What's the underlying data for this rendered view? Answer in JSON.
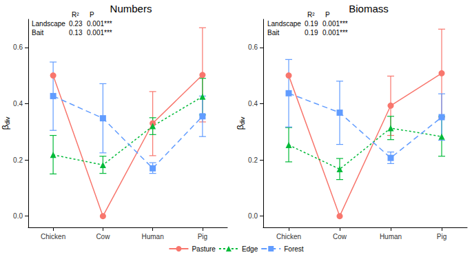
{
  "chart_data": [
    {
      "type": "line",
      "title": "Numbers",
      "categories": [
        "Chicken",
        "Cow",
        "Human",
        "Pig"
      ],
      "y_label": {
        "main": "β",
        "sub": "div"
      },
      "ylim": [
        -0.04,
        0.7
      ],
      "yticks": [
        {
          "value": 0,
          "label": "0.0"
        },
        0.2,
        0.4,
        0.6
      ],
      "grid": false,
      "legend": "bottom",
      "stats": {
        "header": [
          "R²",
          "P"
        ],
        "rows": [
          [
            "Landscape",
            "0.23",
            "0.001***"
          ],
          [
            "Bait",
            "0.13",
            "0.001***"
          ]
        ]
      },
      "series": [
        {
          "name": "Pasture",
          "color": "#F8766D",
          "marker": "circle",
          "line_style": "solid",
          "values": [
            0.5,
            0.0,
            0.33,
            0.502
          ],
          "error_low": [
            null,
            null,
            0.215,
            0.335
          ],
          "error_high": [
            null,
            null,
            0.443,
            0.67
          ]
        },
        {
          "name": "Edge",
          "color": "#00BA38",
          "marker": "triangle",
          "line_style": "dotted",
          "values": [
            0.218,
            0.182,
            0.32,
            0.425
          ],
          "error_low": [
            0.15,
            0.152,
            0.29,
            0.36
          ],
          "error_high": [
            0.287,
            0.213,
            0.35,
            0.49
          ]
        },
        {
          "name": "Forest",
          "color": "#619CFF",
          "marker": "square",
          "line_style": "dashed",
          "values": [
            0.427,
            0.348,
            0.17,
            0.355
          ],
          "error_low": [
            0.305,
            0.225,
            0.152,
            0.283
          ],
          "error_high": [
            0.548,
            0.471,
            0.19,
            0.427
          ]
        }
      ]
    },
    {
      "type": "line",
      "title": "Biomass",
      "categories": [
        "Chicken",
        "Cow",
        "Human",
        "Pig"
      ],
      "y_label": {
        "main": "β",
        "sub": "div"
      },
      "ylim": [
        -0.04,
        0.7
      ],
      "yticks": [
        {
          "value": 0,
          "label": "0.0"
        },
        0.2,
        0.4,
        0.6
      ],
      "grid": false,
      "legend": "bottom",
      "stats": {
        "header": [
          "R²",
          "P"
        ],
        "rows": [
          [
            "Landscape",
            "0.19",
            "0.001***"
          ],
          [
            "Bait",
            "0.19",
            "0.001***"
          ]
        ]
      },
      "series": [
        {
          "name": "Pasture",
          "color": "#F8766D",
          "marker": "circle",
          "line_style": "solid",
          "values": [
            0.5,
            0.0,
            0.393,
            0.508
          ],
          "error_low": [
            null,
            null,
            0.287,
            0.35
          ],
          "error_high": [
            null,
            null,
            0.498,
            0.665
          ]
        },
        {
          "name": "Edge",
          "color": "#00BA38",
          "marker": "triangle",
          "line_style": "dotted",
          "values": [
            0.253,
            0.167,
            0.313,
            0.283
          ],
          "error_low": [
            0.193,
            0.13,
            0.272,
            0.213
          ],
          "error_high": [
            0.315,
            0.205,
            0.355,
            0.355
          ]
        },
        {
          "name": "Forest",
          "color": "#619CFF",
          "marker": "square",
          "line_style": "dashed",
          "values": [
            0.437,
            0.368,
            0.207,
            0.352
          ],
          "error_low": [
            0.317,
            0.255,
            0.187,
            0.27
          ],
          "error_high": [
            0.557,
            0.48,
            0.228,
            0.435
          ]
        }
      ]
    }
  ]
}
